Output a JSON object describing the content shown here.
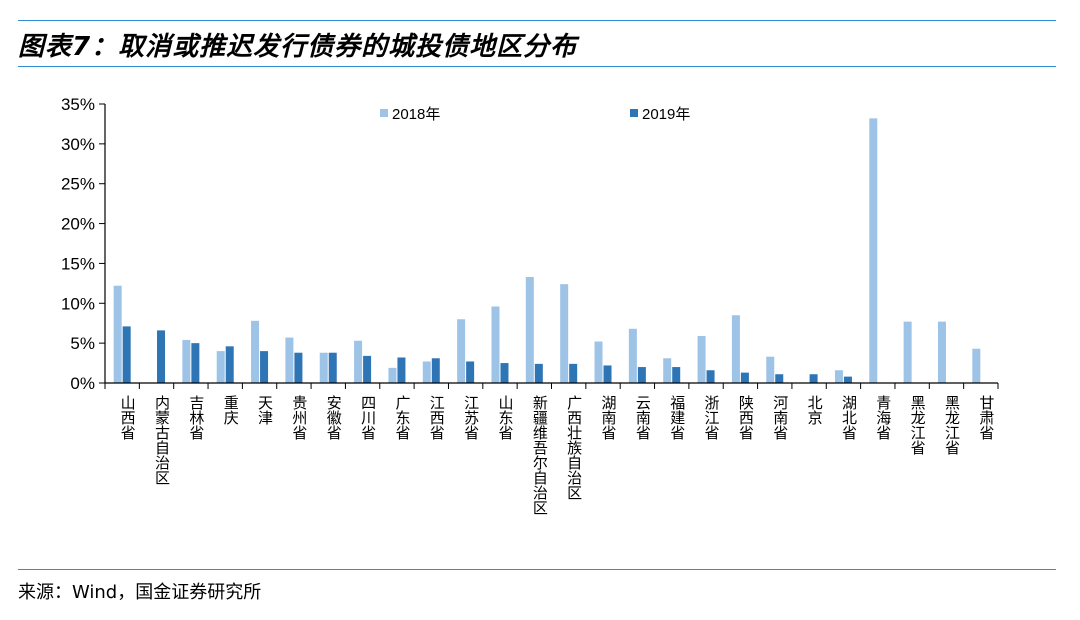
{
  "header": {
    "title": "图表7：取消或推迟发行债券的城投债地区分布"
  },
  "footer": {
    "source": "来源：Wind，国金证券研究所"
  },
  "colors": {
    "rule": "#2f8fd6",
    "series_2018": "#9dc3e6",
    "series_2019": "#2e75b6",
    "axis": "#000000"
  },
  "chart_data": {
    "type": "bar",
    "title": "",
    "xlabel": "",
    "ylabel": "",
    "ylim": [
      0,
      35
    ],
    "yticks": [
      "0%",
      "5%",
      "10%",
      "15%",
      "20%",
      "25%",
      "30%",
      "35%"
    ],
    "legend_position": "top",
    "grid": false,
    "categories": [
      "山西省",
      "内蒙古自治区",
      "吉林省",
      "重庆",
      "天津",
      "贵州省",
      "安徽省",
      "四川省",
      "广东省",
      "江西省",
      "江苏省",
      "山东省",
      "新疆维吾尔自治区",
      "广西壮族自治区",
      "湖南省",
      "云南省",
      "福建省",
      "浙江省",
      "陕西省",
      "河南省",
      "北京",
      "湖北省",
      "青海省",
      "黑龙江省",
      "黑龙江省",
      "甘肃省"
    ],
    "series": [
      {
        "name": "2018年",
        "values": [
          12.2,
          0,
          5.4,
          4.0,
          7.8,
          5.7,
          3.8,
          5.3,
          1.9,
          2.7,
          8.0,
          9.6,
          13.3,
          12.4,
          5.2,
          6.8,
          3.1,
          5.9,
          8.5,
          3.3,
          0,
          1.6,
          33.2,
          7.7,
          7.7,
          4.3
        ]
      },
      {
        "name": "2019年",
        "values": [
          7.1,
          6.6,
          5.0,
          4.6,
          4.0,
          3.8,
          3.8,
          3.4,
          3.2,
          3.1,
          2.7,
          2.5,
          2.4,
          2.4,
          2.2,
          2.0,
          2.0,
          1.6,
          1.3,
          1.1,
          1.1,
          0.8,
          0,
          0,
          0,
          0
        ]
      }
    ]
  }
}
